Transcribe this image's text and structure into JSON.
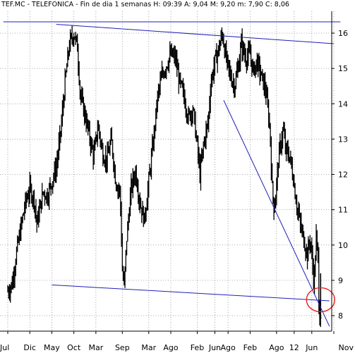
{
  "header": {
    "text": "TEF.MC - TELEFONICA - Fin de dia 1 semanas H: 09:39  A: 9,04  M: 9,20  m: 7,90  C: 8,06"
  },
  "chart_data": {
    "type": "bar",
    "style": "ohlc-weekly",
    "title": "TEF.MC - TELEFONICA - Fin de dia 1 semanas",
    "quote": {
      "time": "09:39",
      "open": 9.04,
      "high": 9.2,
      "low": 7.9,
      "close": 8.06
    },
    "y_axis": {
      "side": "right",
      "ticks": [
        8,
        9,
        10,
        11,
        12,
        13,
        14,
        15,
        16
      ],
      "ylim": [
        7.6,
        16.5
      ]
    },
    "x_labels": [
      "Jul",
      "Dic",
      "May",
      "Oct",
      "Mar",
      "Sep",
      "Mar",
      "Ago",
      "Feb",
      "Jun",
      "Ago",
      "Feb",
      "Ago",
      "12",
      "Jun",
      "Nov"
    ],
    "x_tick_positions": [
      0.0,
      5.0,
      10.0,
      15.0,
      20.0,
      26.0,
      32.0,
      37.0,
      43.0,
      47.0,
      50.0,
      55.0,
      61.0,
      65.0,
      69.0,
      74.0
    ],
    "grid": true,
    "price_path": [
      [
        0.0,
        8.7
      ],
      [
        1.0,
        8.9
      ],
      [
        2.0,
        9.8
      ],
      [
        3.0,
        10.5
      ],
      [
        4.0,
        11.2
      ],
      [
        5.0,
        11.6
      ],
      [
        6.0,
        11.3
      ],
      [
        6.6,
        10.6
      ],
      [
        7.4,
        11.1
      ],
      [
        8.0,
        11.5
      ],
      [
        9.0,
        11.4
      ],
      [
        10.0,
        11.8
      ],
      [
        11.0,
        12.2
      ],
      [
        12.0,
        13.2
      ],
      [
        13.0,
        14.6
      ],
      [
        14.0,
        15.7
      ],
      [
        15.0,
        16.0
      ],
      [
        15.8,
        15.6
      ],
      [
        16.5,
        14.2
      ],
      [
        17.5,
        13.7
      ],
      [
        18.5,
        13.1
      ],
      [
        19.5,
        12.5
      ],
      [
        20.5,
        13.4
      ],
      [
        21.5,
        12.6
      ],
      [
        22.5,
        12.4
      ],
      [
        23.5,
        13.0
      ],
      [
        24.5,
        11.8
      ],
      [
        25.5,
        11.5
      ],
      [
        26.0,
        9.3
      ],
      [
        26.4,
        8.8
      ],
      [
        27.0,
        10.2
      ],
      [
        28.0,
        11.6
      ],
      [
        29.0,
        12.1
      ],
      [
        30.0,
        11.2
      ],
      [
        31.0,
        10.7
      ],
      [
        32.0,
        11.8
      ],
      [
        33.0,
        12.9
      ],
      [
        34.0,
        14.2
      ],
      [
        35.0,
        14.8
      ],
      [
        36.0,
        15.1
      ],
      [
        37.0,
        15.4
      ],
      [
        38.0,
        15.3
      ],
      [
        39.0,
        14.6
      ],
      [
        40.0,
        14.2
      ],
      [
        41.0,
        13.6
      ],
      [
        42.0,
        13.9
      ],
      [
        43.0,
        12.8
      ],
      [
        43.6,
        12.0
      ],
      [
        44.5,
        12.9
      ],
      [
        45.5,
        13.5
      ],
      [
        46.0,
        14.5
      ],
      [
        47.0,
        15.2
      ],
      [
        48.0,
        15.6
      ],
      [
        48.7,
        16.0
      ],
      [
        49.5,
        15.3
      ],
      [
        50.5,
        14.8
      ],
      [
        51.5,
        14.5
      ],
      [
        52.5,
        15.2
      ],
      [
        53.0,
        15.7
      ],
      [
        54.0,
        15.3
      ],
      [
        55.0,
        15.4
      ],
      [
        55.7,
        14.9
      ],
      [
        56.5,
        15.2
      ],
      [
        57.5,
        14.8
      ],
      [
        58.5,
        14.4
      ],
      [
        59.5,
        13.3
      ],
      [
        60.0,
        11.6
      ],
      [
        60.5,
        11.0
      ],
      [
        61.5,
        12.5
      ],
      [
        62.5,
        13.3
      ],
      [
        63.0,
        12.7
      ],
      [
        64.0,
        12.5
      ],
      [
        64.8,
        11.9
      ],
      [
        65.5,
        11.2
      ],
      [
        66.5,
        10.5
      ],
      [
        67.5,
        10.0
      ],
      [
        68.0,
        9.7
      ],
      [
        68.6,
        10.2
      ],
      [
        69.2,
        9.4
      ],
      [
        69.5,
        8.9
      ],
      [
        70.0,
        10.2
      ],
      [
        70.4,
        9.6
      ],
      [
        70.7,
        7.9
      ],
      [
        71.0,
        8.06
      ]
    ],
    "band": 0.3,
    "trendlines": [
      {
        "from": [
          -1.0,
          16.32
        ],
        "to": [
          75.5,
          16.32
        ]
      },
      {
        "from": [
          11.0,
          16.25
        ],
        "to": [
          74.0,
          15.7
        ]
      },
      {
        "from": [
          10.0,
          8.87
        ],
        "to": [
          73.0,
          8.42
        ]
      },
      {
        "from": [
          49.0,
          14.1
        ],
        "to": [
          73.0,
          7.7
        ]
      }
    ],
    "highlight": {
      "x": 71.0,
      "y": 8.45,
      "rx": 20,
      "ry": 17,
      "color": "#e8201c"
    },
    "colors": {
      "price": "#000000",
      "trendline": "#1f1fb8",
      "axis": "#000000"
    }
  }
}
